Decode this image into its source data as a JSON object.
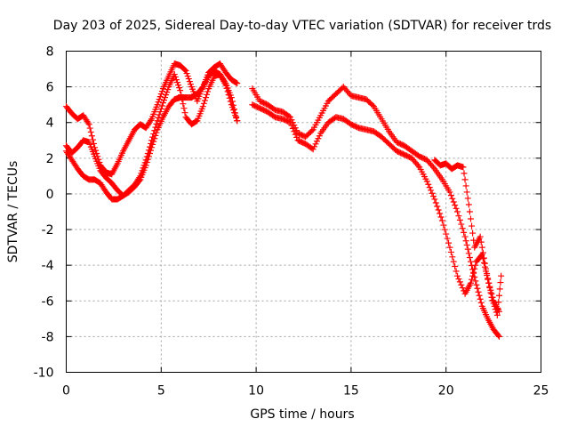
{
  "chart_data": {
    "type": "scatter",
    "title": "Day 203 of 2025, Sidereal Day-to-day VTEC variation (SDTVAR) for receiver trds",
    "xlabel": "GPS time / hours",
    "ylabel": "SDTVAR / TECUs",
    "xlim": [
      0,
      25
    ],
    "ylim": [
      -10,
      8
    ],
    "xticks": [
      "0",
      "5",
      "10",
      "15",
      "20",
      "25"
    ],
    "yticks": [
      "-10",
      "-8",
      "-6",
      "-4",
      "-2",
      "0",
      "2",
      "4",
      "6",
      "8"
    ],
    "grid": true,
    "marker": "+",
    "color": "#ff0000",
    "series": [
      {
        "name": "track-a",
        "x": [
          0,
          0.3,
          0.6,
          0.9,
          1.2,
          1.5,
          1.8,
          2.1,
          2.4,
          2.7,
          3.0,
          3.3,
          3.6,
          3.9,
          4.2,
          4.5,
          4.8,
          5.1,
          5.4,
          5.7,
          6.0,
          6.3,
          6.6,
          6.9,
          7.2,
          7.5,
          7.8,
          8.1,
          8.4,
          8.7,
          9.0
        ],
        "y": [
          4.9,
          4.5,
          4.2,
          4.4,
          3.9,
          2.6,
          1.6,
          1.2,
          1.1,
          1.7,
          2.4,
          3.0,
          3.6,
          3.9,
          3.7,
          4.2,
          5.0,
          5.9,
          6.6,
          7.3,
          7.2,
          6.9,
          6.0,
          5.2,
          6.0,
          6.8,
          7.1,
          7.3,
          6.8,
          6.4,
          6.2
        ]
      },
      {
        "name": "track-b",
        "x": [
          0,
          0.3,
          0.6,
          0.9,
          1.2,
          1.5,
          1.8,
          2.1,
          2.4,
          2.7,
          3.0,
          3.3,
          3.6,
          3.9,
          4.2,
          4.5,
          4.8,
          5.1,
          5.4,
          5.7,
          6.0,
          6.3,
          6.6,
          6.9,
          7.2,
          7.5,
          7.8,
          8.1,
          8.4,
          8.7,
          9.0
        ],
        "y": [
          2.7,
          2.3,
          2.6,
          3.0,
          2.9,
          2.1,
          1.3,
          0.9,
          0.6,
          0.2,
          -0.1,
          0.1,
          0.4,
          0.8,
          1.6,
          2.6,
          3.6,
          4.3,
          4.9,
          5.3,
          5.4,
          5.4,
          5.4,
          5.6,
          6.0,
          6.6,
          6.9,
          6.7,
          6.2,
          5.4,
          4.1
        ]
      },
      {
        "name": "track-c",
        "x": [
          0,
          0.3,
          0.6,
          0.9,
          1.2,
          1.5,
          1.8,
          2.1,
          2.4,
          2.7,
          3.0,
          3.3,
          3.6,
          3.9,
          4.2,
          4.5,
          4.8,
          5.1,
          5.4,
          5.7,
          6.0,
          6.3,
          6.6,
          6.9,
          7.2,
          7.5,
          7.8,
          8.1,
          8.4,
          8.7,
          9.0
        ],
        "y": [
          2.4,
          1.9,
          1.4,
          1.0,
          0.8,
          0.8,
          0.6,
          0.1,
          -0.3,
          -0.3,
          -0.1,
          0.2,
          0.5,
          1.0,
          1.9,
          3.0,
          4.1,
          5.1,
          6.0,
          6.7,
          5.8,
          4.3,
          3.9,
          4.1,
          4.9,
          5.9,
          6.6,
          6.7,
          6.1,
          5.0,
          4.1
        ]
      },
      {
        "name": "track-d",
        "x": [
          9.8,
          10.2,
          10.6,
          11.0,
          11.4,
          11.8,
          12.2,
          12.6,
          13.0,
          13.4,
          13.8,
          14.2,
          14.6,
          15.0,
          15.4,
          15.8,
          16.2,
          16.6,
          17.0,
          17.4,
          17.8,
          18.2,
          18.6,
          19.0,
          19.4,
          19.8,
          20.2,
          20.6,
          21.0,
          21.3,
          21.6,
          21.9,
          22.2,
          22.5,
          22.8
        ],
        "y": [
          5.9,
          5.2,
          5.0,
          4.7,
          4.6,
          4.3,
          3.4,
          3.2,
          3.6,
          4.4,
          5.2,
          5.6,
          6.0,
          5.5,
          5.4,
          5.3,
          4.9,
          4.2,
          3.5,
          2.9,
          2.7,
          2.4,
          2.1,
          1.9,
          1.4,
          0.8,
          0.1,
          -1.0,
          -2.4,
          -3.8,
          -5.1,
          -6.3,
          -7.0,
          -7.6,
          -8.0
        ]
      },
      {
        "name": "track-e",
        "x": [
          9.8,
          10.2,
          10.6,
          11.0,
          11.4,
          11.8,
          12.2,
          12.6,
          13.0,
          13.4,
          13.8,
          14.2,
          14.6,
          15.0,
          15.4,
          15.8,
          16.2,
          16.6,
          17.0,
          17.4,
          17.8,
          18.2,
          18.6,
          19.0,
          19.4,
          19.8,
          20.2,
          20.6,
          21.0,
          21.3,
          21.6,
          21.9,
          22.2,
          22.5,
          22.8
        ],
        "y": [
          5.0,
          4.8,
          4.6,
          4.3,
          4.2,
          4.0,
          3.0,
          2.8,
          2.5,
          3.4,
          4.0,
          4.3,
          4.2,
          3.9,
          3.7,
          3.6,
          3.5,
          3.2,
          2.8,
          2.4,
          2.2,
          2.0,
          1.5,
          0.7,
          -0.3,
          -1.5,
          -3.0,
          -4.6,
          -5.6,
          -5.0,
          -3.8,
          -3.4,
          -4.8,
          -6.0,
          -6.6
        ]
      },
      {
        "name": "track-f",
        "x": [
          19.4,
          19.7,
          20.0,
          20.3,
          20.6,
          20.9,
          21.2,
          21.5,
          21.8,
          22.1,
          22.4,
          22.7,
          22.9
        ],
        "y": [
          1.9,
          1.6,
          1.7,
          1.4,
          1.6,
          1.5,
          -0.6,
          -3.0,
          -2.4,
          -4.2,
          -5.8,
          -6.8,
          -4.6
        ]
      }
    ]
  }
}
